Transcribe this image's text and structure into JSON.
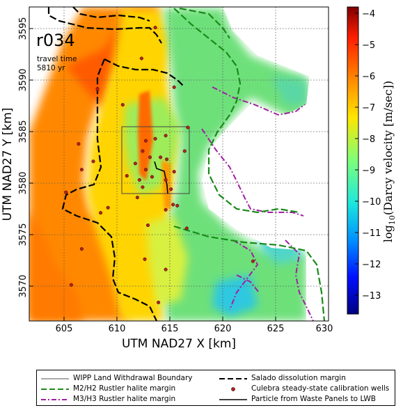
{
  "map": {
    "run_label": "r034",
    "travel_time_label": "travel time",
    "travel_time_value": "5810 yr",
    "xlabel": "UTM NAD27 X [km]",
    "ylabel": "UTM NAD27 Y [km]",
    "x_ticks": [
      "605",
      "610",
      "615",
      "620",
      "625",
      "630"
    ],
    "y_ticks": [
      "3570",
      "3575",
      "3580",
      "3585",
      "3590",
      "3595"
    ],
    "xlim": [
      601.5,
      630
    ],
    "ylim": [
      3566.5,
      3597
    ]
  },
  "colorbar": {
    "label_prefix": "log",
    "label_sub": "10",
    "label_suffix": "(Darcy velocity [m/sec])",
    "ticks": [
      "−4",
      "−5",
      "−6",
      "−7",
      "−8",
      "−9",
      "−10",
      "−11",
      "−12",
      "−13"
    ],
    "range": [
      -13.6,
      -3.8
    ]
  },
  "legend": {
    "items": [
      {
        "label": "WIPP Land Withdrawal Boundary",
        "color": "#555555",
        "style": "solid-thin"
      },
      {
        "label": "Salado dissolution margin",
        "color": "#000000",
        "style": "dashed"
      },
      {
        "label": "M2/H2 Rustler halite margin",
        "color": "#1a8a1a",
        "style": "dashed"
      },
      {
        "label": "Culebra steady-state calibration wells",
        "color": "#b22222",
        "style": "marker"
      },
      {
        "label": "M3/H3 Rustler halite margin",
        "color": "#a020a0",
        "style": "dashdot"
      },
      {
        "label": "Particle from Waste Panels to LWB",
        "color": "#000000",
        "style": "solid"
      }
    ]
  },
  "wells": [
    [
      612.2,
      3592.0
    ],
    [
      613.5,
      3595.0
    ],
    [
      615.3,
      3589.2
    ],
    [
      610.4,
      3587.5
    ],
    [
      608.0,
      3589.0
    ],
    [
      612.6,
      3584.0
    ],
    [
      613.5,
      3584.2
    ],
    [
      614.5,
      3584.5
    ],
    [
      616.6,
      3585.3
    ],
    [
      606.2,
      3583.7
    ],
    [
      612.3,
      3583.0
    ],
    [
      613.0,
      3582.4
    ],
    [
      614.0,
      3582.4
    ],
    [
      616.3,
      3583.0
    ],
    [
      607.6,
      3582.0
    ],
    [
      611.6,
      3581.8
    ],
    [
      612.6,
      3581.2
    ],
    [
      614.6,
      3582.2
    ],
    [
      610.8,
      3580.6
    ],
    [
      612.0,
      3580.2
    ],
    [
      613.2,
      3580.5
    ],
    [
      614.5,
      3580.2
    ],
    [
      615.3,
      3581.0
    ],
    [
      606.5,
      3581.2
    ],
    [
      605.0,
      3579.0
    ],
    [
      615.0,
      3579.3
    ],
    [
      612.3,
      3579.5
    ],
    [
      611.8,
      3578.5
    ],
    [
      615.2,
      3577.8
    ],
    [
      615.6,
      3577.7
    ],
    [
      614.5,
      3577.3
    ],
    [
      612.8,
      3575.8
    ],
    [
      609.0,
      3577.5
    ],
    [
      608.3,
      3577.0
    ],
    [
      616.5,
      3575.5
    ],
    [
      606.5,
      3573.5
    ],
    [
      612.5,
      3572.5
    ],
    [
      614.5,
      3571.5
    ],
    [
      622.8,
      3572.3
    ],
    [
      605.5,
      3570.0
    ],
    [
      613.8,
      3568.3
    ]
  ]
}
